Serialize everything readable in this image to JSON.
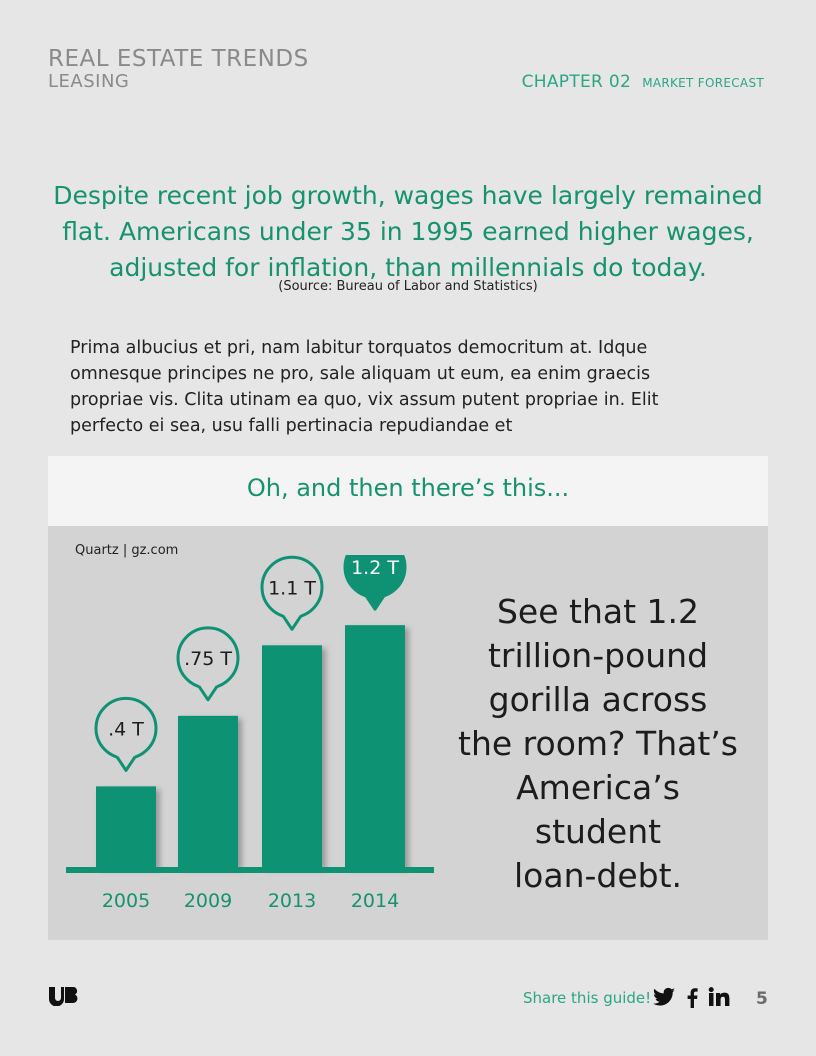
{
  "header": {
    "title": "REAL ESTATE TRENDS",
    "subtitle": "LEASING",
    "chapter_number": "CHAPTER 02",
    "chapter_label": "MARKET FORECAST"
  },
  "intro": {
    "quote_lines": [
      "Despite recent job growth, wages have largely remained",
      "flat. Americans under 35 in 1995 earned higher wages,",
      "adjusted for inflation, than millennials do today."
    ],
    "source": "(Source: Bureau of Labor and Statistics)",
    "paragraph_lines": [
      "Prima albucius et pri, nam labitur torquatos democritum at. Idque",
      "omnesque principes ne pro, sale aliquam ut eum, ea enim graecis",
      "propriae vis. Clita utinam ea quo, vix assum putent propriae in. Elit",
      "perfecto ei sea, usu falli pertinacia repudiandae et"
    ]
  },
  "callout": {
    "heading": "Oh, and then there’s this...",
    "credit": "Quartz | gz.com",
    "tagline_lines": [
      "See that 1.2",
      "trillion-pound",
      "gorilla across",
      "the room? That’s",
      "America’s student",
      "loan-debt."
    ]
  },
  "chart_data": {
    "type": "bar",
    "categories": [
      "2005",
      "2009",
      "2013",
      "2014"
    ],
    "values": [
      0.4,
      0.75,
      1.1,
      1.2
    ],
    "data_labels": [
      ".4 T",
      ".75 T",
      "1.1 T",
      "1.2 T"
    ],
    "highlight_index": 3,
    "ylim": [
      0,
      1.3
    ]
  },
  "colors": {
    "accent": "#16926f",
    "bar": "#0e9273",
    "axis": "#0e9273",
    "panel": "#d3d3d3"
  },
  "footer": {
    "logo": "UB",
    "share_label": "Share this guide!",
    "social_icons": [
      "twitter-icon",
      "facebook-icon",
      "linkedin-icon"
    ],
    "page_number": "5"
  }
}
